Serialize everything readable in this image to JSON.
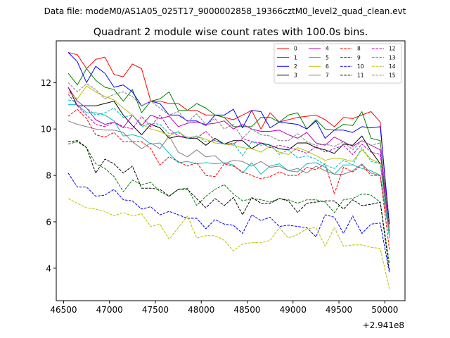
{
  "suptitle": "Data file: modeM0/AS1A05_025T17_9000002858_19366cztM0_level2_quad_clean.evt",
  "chart_data": {
    "type": "line",
    "title": "Quadrant 2 module wise count rates with 100.0s bins.",
    "xlabel": "",
    "ylabel": "",
    "x_offset_label": "+2.941e8",
    "xlim": [
      46420,
      50220
    ],
    "ylim": [
      2.6,
      13.8
    ],
    "xticks": [
      46500,
      47000,
      47500,
      48000,
      48500,
      49000,
      49500,
      50000
    ],
    "yticks": [
      4,
      6,
      8,
      10,
      12
    ],
    "legend_position": "top-right",
    "grid": false,
    "x": [
      46550,
      46650,
      46750,
      46850,
      46950,
      47050,
      47150,
      47250,
      47350,
      47450,
      47550,
      47650,
      47750,
      47850,
      47950,
      48050,
      48150,
      48250,
      48350,
      48450,
      48550,
      48650,
      48750,
      48850,
      48950,
      49050,
      49150,
      49250,
      49350,
      49450,
      49550,
      49650,
      49750,
      49850,
      49950,
      50050
    ],
    "series": [
      {
        "name": "0",
        "color": "#ff0000",
        "dash": "solid",
        "values": [
          13.3,
          13.2,
          12.6,
          13.0,
          13.1,
          12.35,
          12.25,
          12.8,
          12.6,
          11.2,
          11.2,
          11.1,
          11.1,
          10.8,
          10.8,
          10.6,
          10.6,
          10.5,
          10.4,
          10.6,
          10.8,
          10.0,
          10.7,
          10.3,
          10.4,
          10.5,
          10.55,
          10.6,
          10.4,
          10.1,
          10.5,
          10.45,
          10.6,
          10.75,
          10.3,
          5.5
        ]
      },
      {
        "name": "1",
        "color": "#008000",
        "dash": "solid",
        "values": [
          12.4,
          11.9,
          12.6,
          12.1,
          11.8,
          11.7,
          11.2,
          11.7,
          10.7,
          11.2,
          11.3,
          11.6,
          10.8,
          10.8,
          11.1,
          10.9,
          10.6,
          10.5,
          10.1,
          10.1,
          10.1,
          10.5,
          10.5,
          10.3,
          10.6,
          10.7,
          10.0,
          10.4,
          10.0,
          9.95,
          10.2,
          10.15,
          10.75,
          9.6,
          9.5,
          5.5
        ]
      },
      {
        "name": "2",
        "color": "#0000ff",
        "dash": "solid",
        "values": [
          13.3,
          12.9,
          12.0,
          12.7,
          12.4,
          11.8,
          11.9,
          11.6,
          11.0,
          11.2,
          11.1,
          10.6,
          10.6,
          10.35,
          10.35,
          10.15,
          10.6,
          10.6,
          10.85,
          10.05,
          10.8,
          10.75,
          10.05,
          10.3,
          10.25,
          10.2,
          10.0,
          10.35,
          9.6,
          9.95,
          9.95,
          9.85,
          10.1,
          10.05,
          10.1,
          5.9
        ]
      },
      {
        "name": "3",
        "color": "#000000",
        "dash": "solid",
        "values": [
          11.8,
          11.0,
          11.0,
          11.0,
          11.1,
          11.2,
          10.6,
          10.15,
          9.75,
          10.2,
          10.05,
          9.6,
          9.7,
          9.6,
          9.6,
          9.3,
          9.6,
          9.35,
          9.5,
          9.5,
          9.15,
          9.4,
          9.3,
          9.15,
          9.1,
          9.4,
          9.4,
          9.2,
          9.1,
          8.95,
          9.35,
          9.3,
          9.7,
          9.05,
          8.5,
          5.9
        ]
      },
      {
        "name": "4",
        "color": "#bf00bf",
        "dash": "solid",
        "values": [
          11.8,
          11.2,
          10.9,
          10.4,
          10.2,
          10.3,
          10.05,
          10.6,
          10.15,
          10.6,
          10.45,
          10.55,
          10.1,
          10.25,
          10.3,
          10.2,
          10.25,
          10.35,
          10.0,
          10.2,
          10.0,
          9.9,
          9.9,
          9.95,
          9.75,
          9.6,
          9.85,
          9.4,
          9.3,
          9.65,
          9.45,
          9.25,
          9.5,
          9.3,
          9.1,
          5.5
        ]
      },
      {
        "name": "5",
        "color": "#00bfbf",
        "dash": "solid",
        "values": [
          11.05,
          11.05,
          10.7,
          10.7,
          10.6,
          10.35,
          9.7,
          9.75,
          9.65,
          9.35,
          9.4,
          8.95,
          8.55,
          8.6,
          8.5,
          8.55,
          8.5,
          8.55,
          8.45,
          8.1,
          8.55,
          8.05,
          8.4,
          8.5,
          8.2,
          8.15,
          8.5,
          8.55,
          8.35,
          8.05,
          8.45,
          8.45,
          8.3,
          8.2,
          8.0,
          5.4
        ]
      },
      {
        "name": "6",
        "color": "#bfbf00",
        "dash": "solid",
        "values": [
          11.6,
          11.3,
          11.85,
          11.6,
          11.4,
          11.25,
          10.9,
          10.6,
          10.2,
          10.0,
          9.9,
          9.7,
          9.9,
          9.6,
          9.7,
          9.55,
          9.4,
          9.35,
          9.3,
          9.2,
          9.15,
          9.0,
          9.25,
          9.0,
          8.9,
          9.2,
          9.05,
          8.85,
          8.65,
          8.75,
          8.7,
          8.6,
          9.1,
          8.7,
          8.5,
          5.5
        ]
      },
      {
        "name": "7",
        "color": "#808080",
        "dash": "solid",
        "values": [
          10.35,
          10.2,
          10.1,
          10.0,
          9.95,
          9.95,
          9.85,
          9.45,
          9.15,
          9.4,
          9.15,
          9.7,
          9.0,
          8.8,
          9.1,
          8.8,
          8.85,
          8.5,
          8.65,
          8.6,
          8.4,
          8.6,
          8.35,
          8.4,
          8.2,
          8.3,
          8.1,
          8.4,
          8.2,
          8.05,
          8.05,
          8.2,
          8.5,
          8.1,
          8.0,
          5.4
        ]
      },
      {
        "name": "8",
        "color": "#ff0000",
        "dash": "dashed",
        "values": [
          10.55,
          10.85,
          10.45,
          9.75,
          9.65,
          9.85,
          9.45,
          9.45,
          9.45,
          9.15,
          8.45,
          8.8,
          8.6,
          8.4,
          8.55,
          8.0,
          7.95,
          8.5,
          8.4,
          8.15,
          8.0,
          7.85,
          7.95,
          8.15,
          8.0,
          8.0,
          8.35,
          8.25,
          8.5,
          7.2,
          8.35,
          8.15,
          8.45,
          8.0,
          8.0,
          4.8
        ]
      },
      {
        "name": "9",
        "color": "#008000",
        "dash": "dashed",
        "values": [
          9.35,
          9.45,
          9.2,
          8.5,
          8.3,
          7.95,
          7.3,
          7.8,
          7.6,
          7.7,
          7.3,
          7.1,
          7.4,
          7.45,
          6.7,
          7.1,
          7.4,
          7.6,
          7.2,
          6.9,
          7.0,
          6.95,
          6.85,
          7.0,
          6.95,
          6.8,
          6.95,
          6.95,
          6.85,
          6.4,
          6.95,
          7.0,
          7.2,
          7.15,
          6.85,
          4.2
        ]
      },
      {
        "name": "10",
        "color": "#0000ff",
        "dash": "dashed",
        "values": [
          8.1,
          7.5,
          7.5,
          7.1,
          7.15,
          7.4,
          6.95,
          6.9,
          6.55,
          6.65,
          6.3,
          6.45,
          6.3,
          6.15,
          6.15,
          5.7,
          6.1,
          5.9,
          5.85,
          5.5,
          6.3,
          6.05,
          6.2,
          5.8,
          5.85,
          5.8,
          5.75,
          5.35,
          6.3,
          6.2,
          5.5,
          6.25,
          5.5,
          5.9,
          5.95,
          3.8
        ]
      },
      {
        "name": "11",
        "color": "#000000",
        "dash": "dashed",
        "values": [
          9.45,
          9.5,
          9.2,
          8.1,
          8.7,
          8.5,
          8.1,
          8.4,
          7.45,
          7.45,
          7.4,
          7.1,
          7.4,
          7.4,
          7.0,
          6.6,
          7.0,
          6.7,
          7.05,
          6.3,
          7.05,
          6.8,
          6.8,
          7.0,
          6.9,
          6.4,
          6.8,
          6.85,
          6.9,
          6.9,
          6.55,
          6.95,
          6.7,
          6.75,
          6.85,
          3.9
        ]
      },
      {
        "name": "12",
        "color": "#bf00bf",
        "dash": "dashed",
        "values": [
          11.5,
          11.0,
          10.6,
          10.2,
          10.1,
          10.3,
          10.1,
          10.0,
          10.55,
          10.1,
          10.6,
          10.0,
          9.7,
          9.65,
          9.6,
          9.9,
          9.5,
          9.35,
          9.35,
          9.6,
          9.45,
          9.4,
          9.2,
          9.3,
          9.2,
          9.1,
          8.95,
          9.25,
          9.0,
          9.15,
          9.3,
          8.9,
          9.35,
          9.0,
          8.9,
          5.6
        ]
      },
      {
        "name": "13",
        "color": "#00bfbf",
        "dash": "dashed",
        "values": [
          11.25,
          11.2,
          10.9,
          10.6,
          10.7,
          10.9,
          10.5,
          10.6,
          10.1,
          10.25,
          10.2,
          9.8,
          9.85,
          9.6,
          9.7,
          9.45,
          9.5,
          9.35,
          9.4,
          8.85,
          9.45,
          9.3,
          9.35,
          8.9,
          9.1,
          8.75,
          8.85,
          8.7,
          8.45,
          8.3,
          8.65,
          8.45,
          9.2,
          8.6,
          8.5,
          5.3
        ]
      },
      {
        "name": "14",
        "color": "#bfbf00",
        "dash": "dashed",
        "values": [
          7.0,
          6.8,
          6.6,
          6.55,
          6.45,
          6.25,
          6.4,
          6.25,
          6.35,
          5.8,
          5.9,
          5.25,
          5.75,
          6.25,
          5.3,
          5.4,
          5.4,
          5.2,
          4.75,
          5.05,
          5.1,
          5.1,
          5.2,
          5.75,
          5.3,
          5.45,
          5.7,
          5.75,
          4.95,
          5.75,
          4.95,
          5.0,
          5.0,
          4.9,
          4.85,
          3.1
        ]
      },
      {
        "name": "15",
        "color": "#808080",
        "dash": "dashed",
        "values": [
          12.0,
          11.6,
          11.95,
          11.7,
          11.3,
          11.5,
          11.6,
          11.4,
          11.0,
          11.2,
          10.9,
          10.6,
          10.75,
          10.3,
          10.65,
          10.2,
          10.45,
          10.0,
          10.2,
          9.6,
          10.0,
          9.75,
          9.7,
          9.5,
          9.5,
          9.8,
          9.45,
          9.3,
          9.35,
          9.25,
          9.45,
          9.1,
          9.5,
          9.3,
          9.4,
          5.7
        ]
      }
    ]
  }
}
